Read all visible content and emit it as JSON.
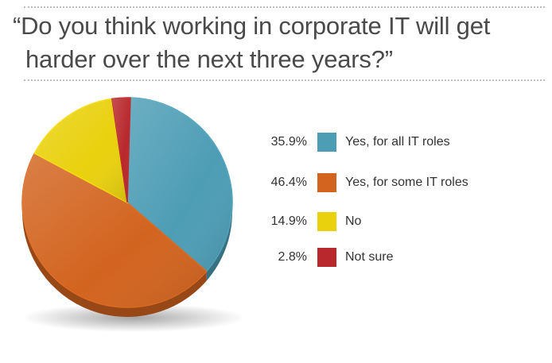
{
  "title": {
    "line1": "“Do you think working in corporate IT will get",
    "line2": "harder over the next three years?”"
  },
  "chart_data": {
    "type": "pie",
    "title": "“Do you think working in corporate IT will get harder over the next three years?”",
    "unit": "%",
    "legend_position": "right",
    "slices": [
      {
        "label": "Yes, for all IT roles",
        "value": 35.9,
        "display": "35.9%",
        "color": "#4d9db5"
      },
      {
        "label": "Yes, for some IT roles",
        "value": 46.4,
        "display": "46.4%",
        "color": "#d2641f"
      },
      {
        "label": "No",
        "value": 14.9,
        "display": "14.9%",
        "color": "#e9d10e"
      },
      {
        "label": "Not sure",
        "value": 2.8,
        "display": "2.8%",
        "color": "#b8282c"
      }
    ]
  }
}
